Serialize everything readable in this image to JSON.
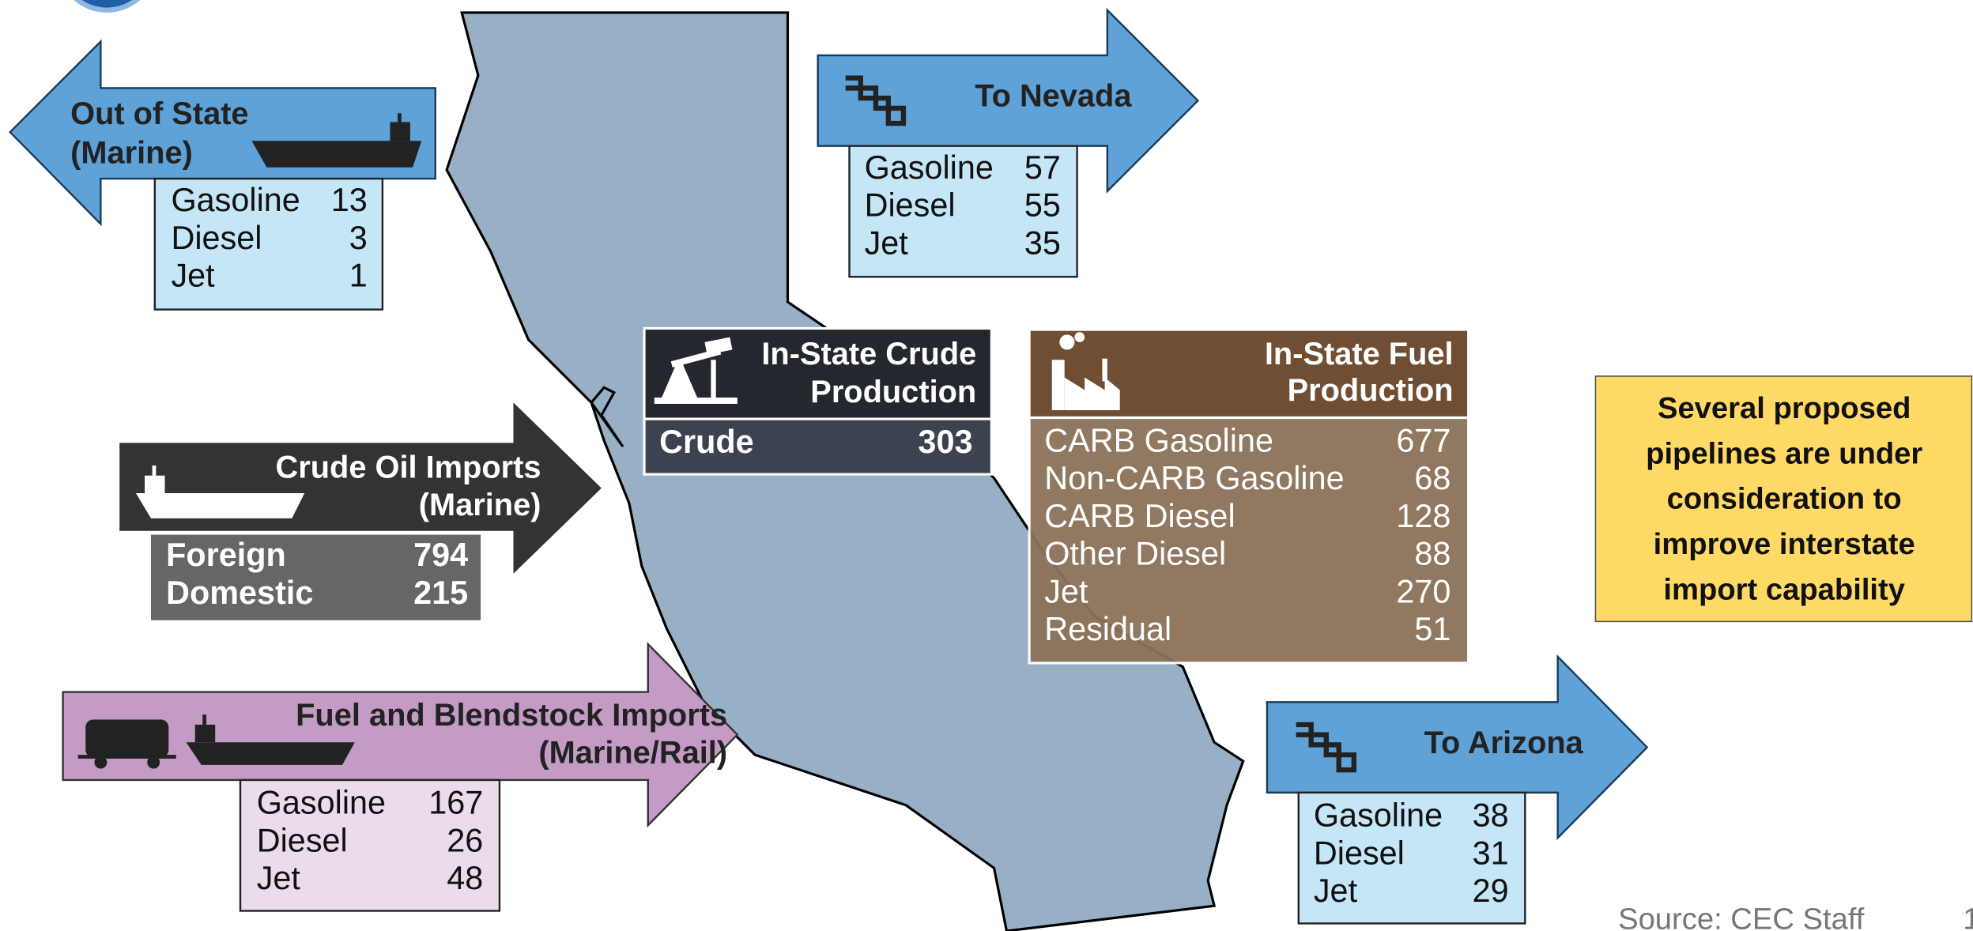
{
  "panels": [
    {
      "title": [
        "Out of State",
        "(Marine)"
      ],
      "rows": [
        [
          "Gasoline",
          13
        ],
        [
          "Diesel",
          3
        ],
        [
          "Jet",
          1
        ]
      ]
    },
    {
      "title": [
        "To Nevada"
      ],
      "rows": [
        [
          "Gasoline",
          57
        ],
        [
          "Diesel",
          55
        ],
        [
          "Jet",
          35
        ]
      ]
    },
    {
      "title": [
        "In-State Crude",
        "Production"
      ],
      "rows": [
        [
          "Crude",
          303
        ]
      ]
    },
    {
      "title": [
        "In-State Fuel",
        "Production"
      ],
      "rows": [
        [
          "CARB Gasoline",
          677
        ],
        [
          "Non-CARB Gasoline",
          68
        ],
        [
          "CARB Diesel",
          128
        ],
        [
          "Other Diesel",
          88
        ],
        [
          "Jet",
          270
        ],
        [
          "Residual",
          51
        ]
      ]
    },
    {
      "title": [
        "Crude Oil Imports",
        "(Marine)"
      ],
      "rows": [
        [
          "Foreign",
          794
        ],
        [
          "Domestic",
          215
        ]
      ]
    },
    {
      "title": [
        "Fuel and Blendstock Imports",
        "(Marine/Rail)"
      ],
      "rows": [
        [
          "Gasoline",
          167
        ],
        [
          "Diesel",
          26
        ],
        [
          "Jet",
          48
        ]
      ]
    },
    {
      "title": [
        "To Arizona"
      ],
      "rows": [
        [
          "Gasoline",
          38
        ],
        [
          "Diesel",
          31
        ],
        [
          "Jet",
          29
        ]
      ]
    }
  ],
  "note": [
    "Several proposed",
    "pipelines are under",
    "consideration to",
    "improve interstate",
    "import capability"
  ],
  "source": "Source: CEC Staff",
  "page_number": "1"
}
